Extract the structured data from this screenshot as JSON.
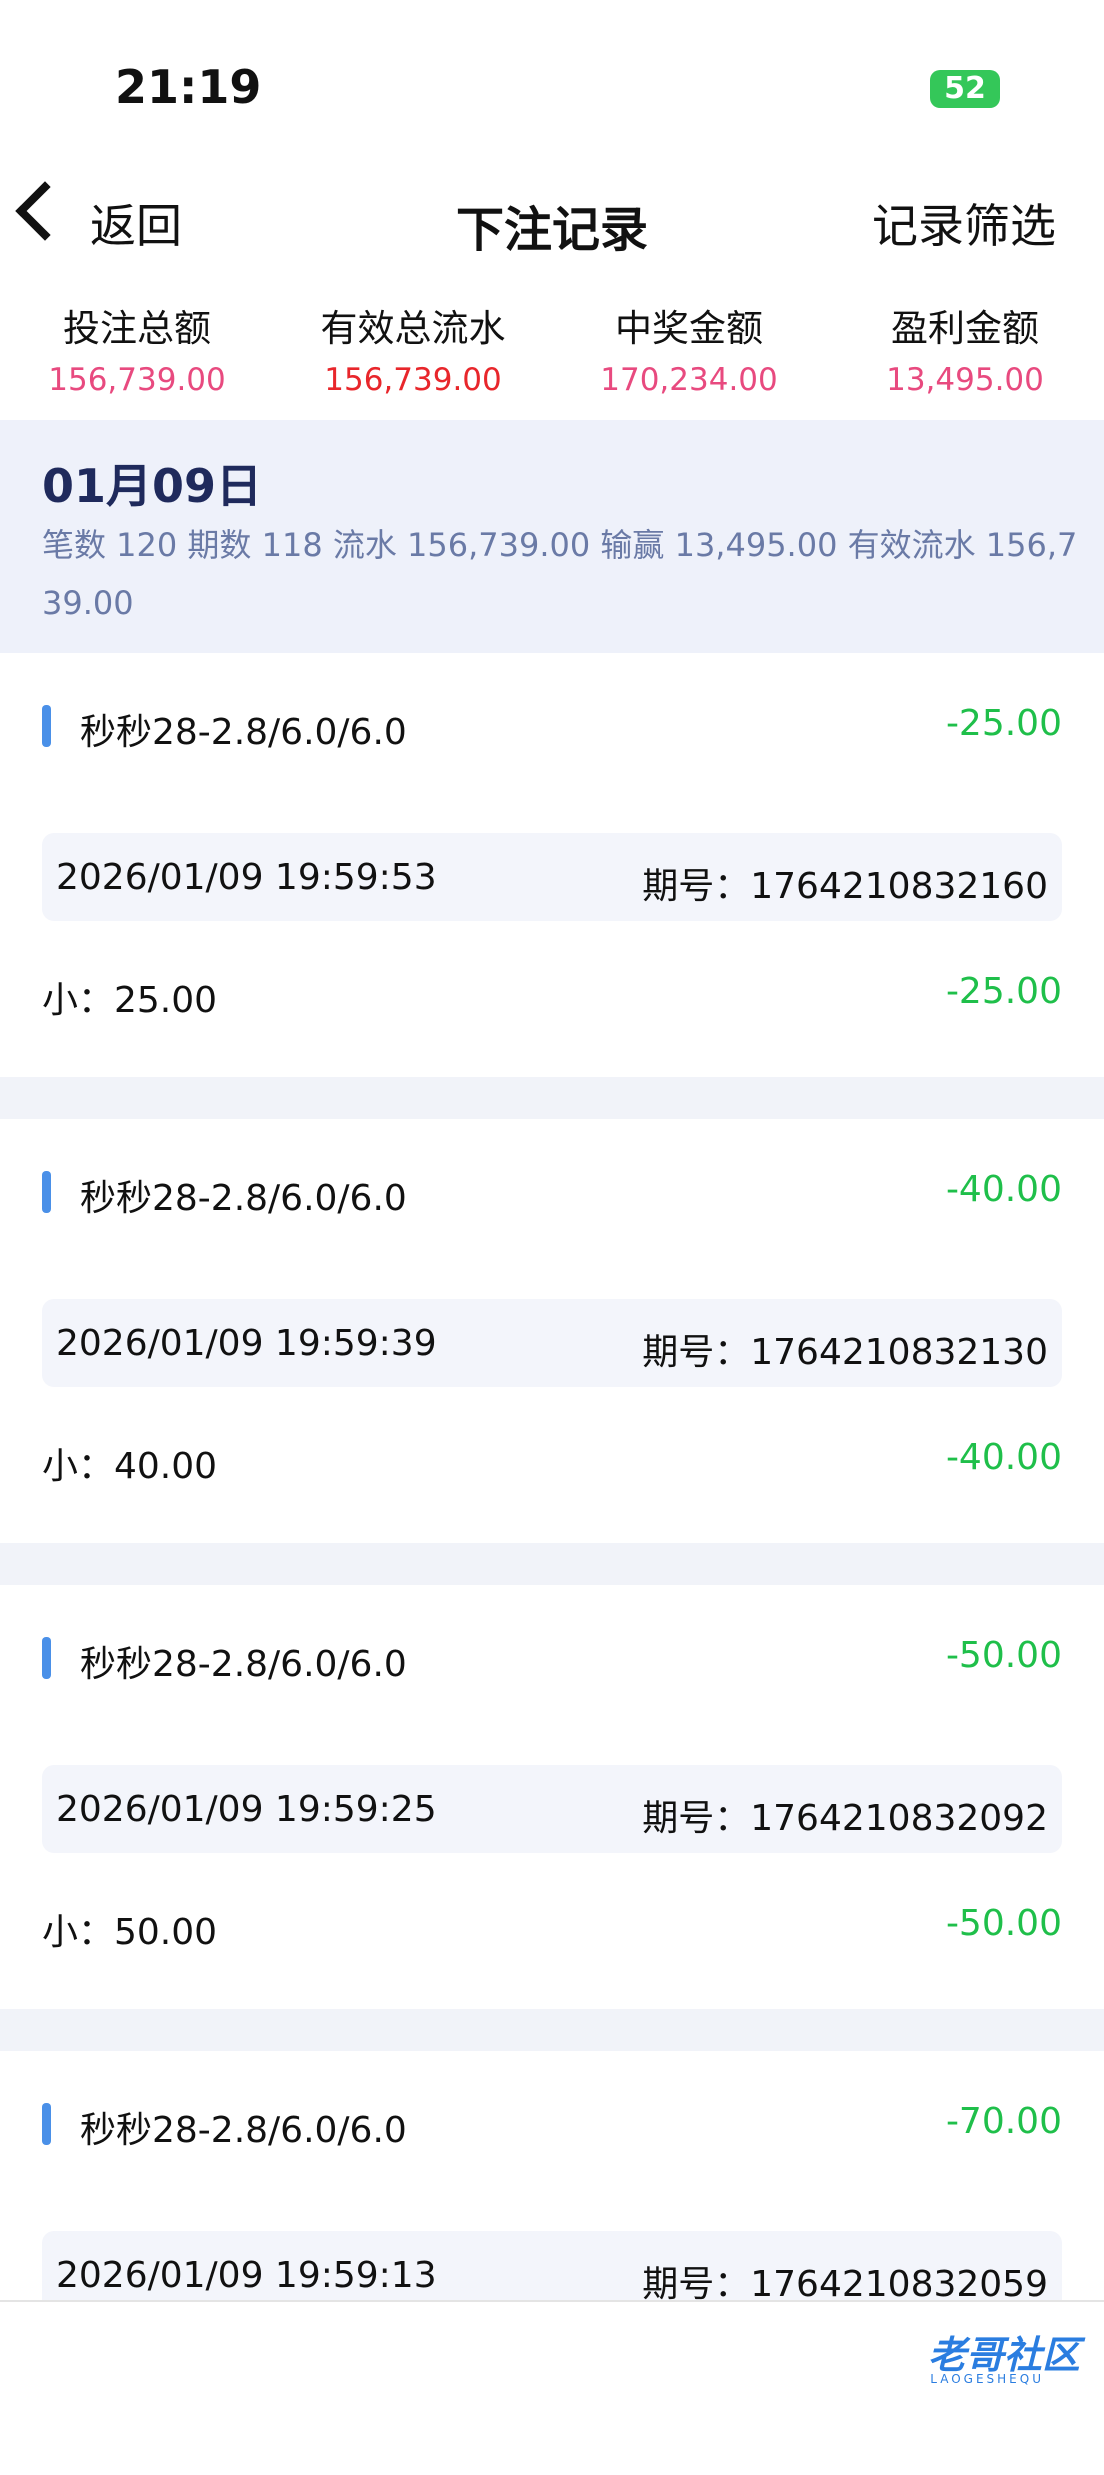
{
  "status": {
    "time": "21:19",
    "battery": "52"
  },
  "nav": {
    "back": "返回",
    "title": "下注记录",
    "filter": "记录筛选"
  },
  "summary": [
    {
      "label": "投注总额",
      "value": "156,739.00"
    },
    {
      "label": "有效总流水",
      "value": "156,739.00"
    },
    {
      "label": "中奖金额",
      "value": "170,234.00"
    },
    {
      "label": "盈利金额",
      "value": "13,495.00"
    }
  ],
  "day": {
    "date": "01月09日",
    "stats": "笔数 120 期数 118 流水 156,739.00 输赢 13,495.00 有效流水 156,739.00"
  },
  "records": [
    {
      "name": "秒秒28-2.8/6.0/6.0",
      "amount": "-25.00",
      "time": "2026/01/09 19:59:53",
      "issue_label": "期号：",
      "issue": "1764210832160",
      "bet": "小：25.00",
      "result": "-25.00"
    },
    {
      "name": "秒秒28-2.8/6.0/6.0",
      "amount": "-40.00",
      "time": "2026/01/09 19:59:39",
      "issue_label": "期号：",
      "issue": "1764210832130",
      "bet": "小：40.00",
      "result": "-40.00"
    },
    {
      "name": "秒秒28-2.8/6.0/6.0",
      "amount": "-50.00",
      "time": "2026/01/09 19:59:25",
      "issue_label": "期号：",
      "issue": "1764210832092",
      "bet": "小：50.00",
      "result": "-50.00"
    },
    {
      "name": "秒秒28-2.8/6.0/6.0",
      "amount": "-70.00",
      "time": "2026/01/09 19:59:13",
      "issue_label": "期号：",
      "issue": "1764210832059"
    }
  ],
  "watermark": {
    "text": "老哥社区",
    "sub": "LAOGESHEQU"
  }
}
